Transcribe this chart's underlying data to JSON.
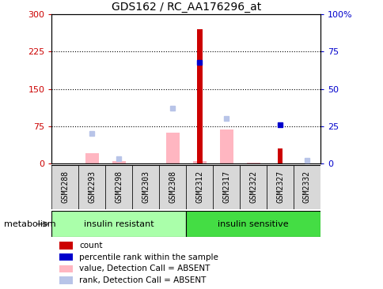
{
  "title": "GDS162 / RC_AA176296_at",
  "samples": [
    "GSM2288",
    "GSM2293",
    "GSM2298",
    "GSM2303",
    "GSM2308",
    "GSM2312",
    "GSM2317",
    "GSM2322",
    "GSM2327",
    "GSM2332"
  ],
  "count_values": [
    0,
    0,
    0,
    0,
    0,
    270,
    0,
    0,
    30,
    0
  ],
  "rank_values": [
    null,
    null,
    null,
    null,
    null,
    68,
    null,
    null,
    26,
    null
  ],
  "absent_value_bars": [
    0,
    20,
    4,
    0,
    62,
    4,
    68,
    2,
    0,
    0
  ],
  "absent_rank_markers": [
    null,
    20,
    3,
    null,
    37,
    null,
    30,
    null,
    null,
    2
  ],
  "ylim_left": [
    0,
    300
  ],
  "ylim_right": [
    0,
    100
  ],
  "yticks_left": [
    0,
    75,
    150,
    225,
    300
  ],
  "yticks_right": [
    0,
    25,
    50,
    75,
    100
  ],
  "ytick_labels_right": [
    "0",
    "25",
    "50",
    "75",
    "100%"
  ],
  "groups": [
    {
      "label": "insulin resistant",
      "start": 0,
      "end": 5,
      "color": "#aaffaa"
    },
    {
      "label": "insulin sensitive",
      "start": 5,
      "end": 10,
      "color": "#44dd44"
    }
  ],
  "group_label": "metabolism",
  "color_count": "#cc0000",
  "color_rank": "#0000cc",
  "color_absent_value": "#ffb6c1",
  "color_absent_rank": "#b8c4e8",
  "background_color": "#ffffff",
  "plot_bg_color": "#ffffff",
  "tick_bg_color": "#d8d8d8",
  "xlabel_color": "#cc0000",
  "ylabel_right_color": "#0000cc"
}
